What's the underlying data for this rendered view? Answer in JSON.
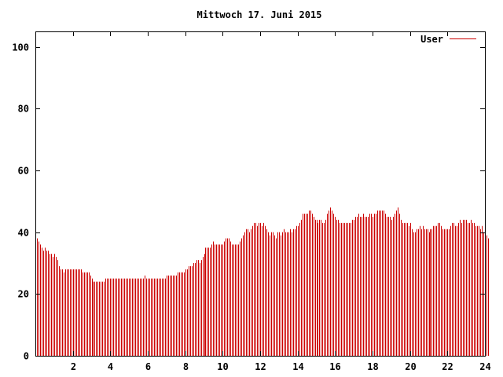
{
  "chart_data": {
    "type": "bar",
    "title": "Mittwoch 17. Juni 2015",
    "xlabel": "",
    "ylabel": "",
    "xlim": [
      0,
      24
    ],
    "ylim": [
      0,
      105
    ],
    "x_ticks": [
      2,
      4,
      6,
      8,
      10,
      12,
      14,
      16,
      18,
      20,
      22,
      24
    ],
    "y_ticks": [
      0,
      20,
      40,
      60,
      80,
      100
    ],
    "legend": {
      "position": "top-right"
    },
    "grid": false,
    "colors": {
      "series": "#cc0000",
      "axis": "#000000",
      "background": "#ffffff"
    },
    "interval_minutes": 5,
    "series": [
      {
        "name": "User",
        "values": [
          38,
          38,
          37,
          36,
          35,
          34,
          35,
          34,
          34,
          33,
          33,
          32,
          33,
          32,
          31,
          29,
          28,
          28,
          27,
          28,
          28,
          28,
          28,
          28,
          28,
          28,
          28,
          28,
          28,
          28,
          27,
          27,
          27,
          27,
          27,
          26,
          25,
          24,
          24,
          24,
          24,
          24,
          24,
          24,
          24,
          25,
          25,
          25,
          25,
          25,
          25,
          25,
          25,
          25,
          25,
          25,
          25,
          25,
          25,
          25,
          25,
          25,
          25,
          25,
          25,
          25,
          25,
          25,
          25,
          25,
          26,
          25,
          25,
          25,
          25,
          25,
          25,
          25,
          25,
          25,
          25,
          25,
          25,
          25,
          26,
          26,
          26,
          26,
          26,
          26,
          26,
          27,
          27,
          27,
          27,
          27,
          28,
          28,
          29,
          29,
          29,
          30,
          30,
          31,
          31,
          30,
          31,
          32,
          33,
          35,
          35,
          35,
          35,
          36,
          37,
          36,
          36,
          36,
          36,
          36,
          36,
          37,
          38,
          38,
          38,
          37,
          36,
          36,
          36,
          36,
          36,
          37,
          38,
          39,
          40,
          41,
          41,
          40,
          41,
          42,
          43,
          43,
          42,
          43,
          43,
          42,
          43,
          42,
          41,
          40,
          39,
          40,
          40,
          39,
          38,
          40,
          40,
          39,
          40,
          41,
          40,
          40,
          40,
          41,
          40,
          41,
          41,
          42,
          42,
          43,
          44,
          46,
          46,
          46,
          46,
          47,
          47,
          46,
          45,
          44,
          44,
          43,
          44,
          44,
          43,
          43,
          44,
          46,
          47,
          48,
          47,
          46,
          45,
          44,
          44,
          43,
          43,
          43,
          43,
          43,
          43,
          43,
          43,
          44,
          44,
          45,
          45,
          46,
          45,
          45,
          46,
          45,
          45,
          45,
          46,
          46,
          45,
          46,
          46,
          47,
          47,
          47,
          47,
          47,
          46,
          45,
          45,
          45,
          44,
          45,
          46,
          47,
          48,
          46,
          44,
          43,
          43,
          43,
          43,
          42,
          43,
          41,
          40,
          40,
          41,
          41,
          42,
          41,
          42,
          41,
          41,
          41,
          40,
          41,
          41,
          42,
          42,
          42,
          43,
          43,
          42,
          41,
          41,
          41,
          41,
          41,
          42,
          43,
          43,
          42,
          42,
          43,
          44,
          43,
          44,
          44,
          44,
          43,
          43,
          44,
          43,
          43,
          42,
          42,
          42,
          41,
          42,
          40,
          39,
          39,
          38
        ]
      }
    ]
  }
}
